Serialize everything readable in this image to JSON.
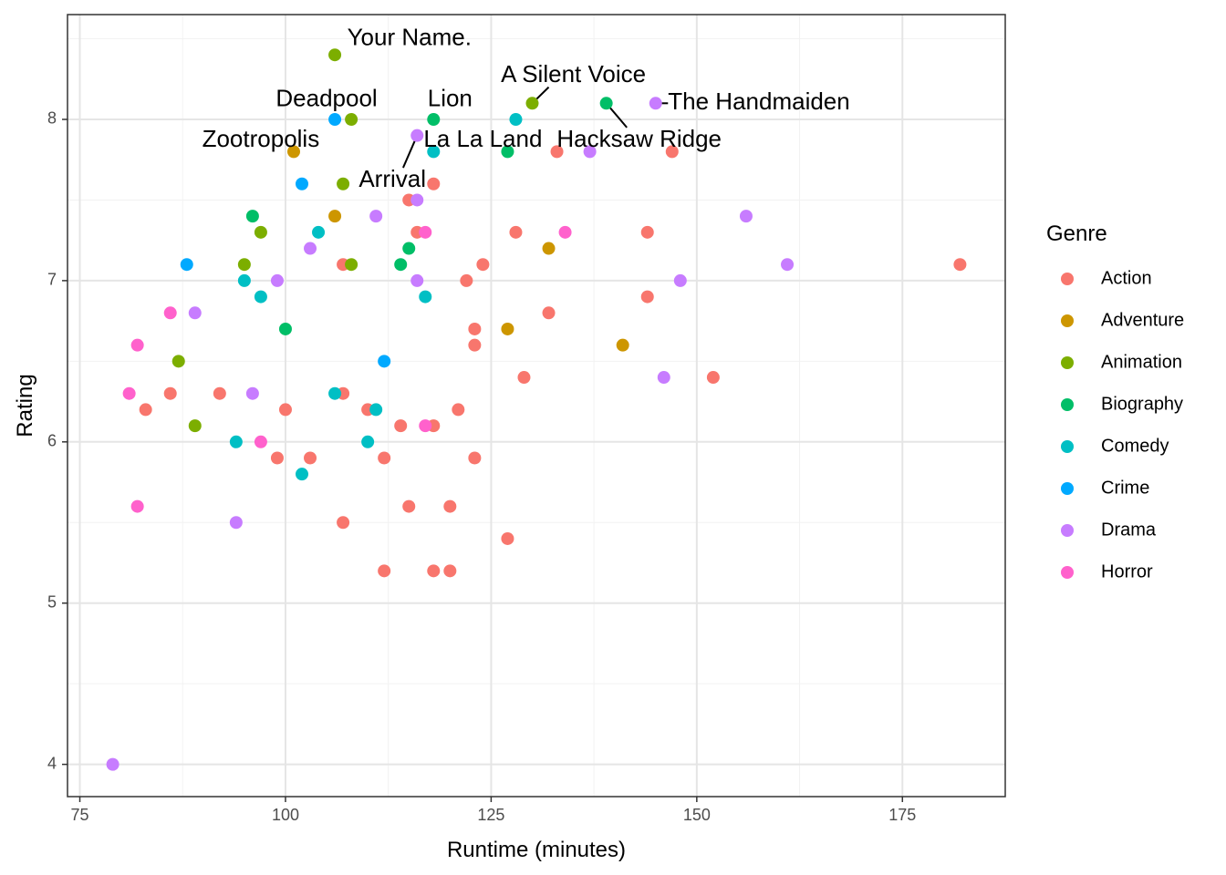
{
  "chart_data": {
    "type": "scatter",
    "title": "",
    "xlabel": "Runtime (minutes)",
    "ylabel": "Rating",
    "xlim": [
      73.5,
      187.5
    ],
    "ylim": [
      3.8,
      8.65
    ],
    "x_ticks": [
      75,
      100,
      125,
      150,
      175
    ],
    "y_ticks": [
      4,
      5,
      6,
      7,
      8
    ],
    "grid": true,
    "legend": {
      "title": "Genre",
      "placement": "right"
    },
    "series": [
      {
        "name": "Action",
        "color": "#F8766D",
        "points": [
          [
            83,
            6.2
          ],
          [
            86,
            6.3
          ],
          [
            92,
            6.3
          ],
          [
            99,
            5.9
          ],
          [
            100,
            6.2
          ],
          [
            103,
            5.9
          ],
          [
            107,
            7.1
          ],
          [
            107,
            6.3
          ],
          [
            107,
            5.5
          ],
          [
            110,
            6.2
          ],
          [
            112,
            5.9
          ],
          [
            112,
            5.2
          ],
          [
            114,
            6.1
          ],
          [
            115,
            7.5
          ],
          [
            115,
            5.6
          ],
          [
            116,
            7.3
          ],
          [
            118,
            7.6
          ],
          [
            118,
            6.1
          ],
          [
            118,
            5.2
          ],
          [
            120,
            5.6
          ],
          [
            120,
            5.2
          ],
          [
            121,
            6.2
          ],
          [
            122,
            7.0
          ],
          [
            123,
            6.7
          ],
          [
            123,
            6.6
          ],
          [
            123,
            5.9
          ],
          [
            124,
            7.1
          ],
          [
            127,
            5.4
          ],
          [
            128,
            7.3
          ],
          [
            129,
            6.4
          ],
          [
            132,
            6.8
          ],
          [
            133,
            7.8
          ],
          [
            144,
            7.3
          ],
          [
            144,
            6.9
          ],
          [
            147,
            7.8
          ],
          [
            152,
            6.4
          ],
          [
            182,
            7.1
          ]
        ]
      },
      {
        "name": "Adventure",
        "color": "#CD9600",
        "points": [
          [
            101,
            7.8
          ],
          [
            106,
            7.4
          ],
          [
            127,
            6.7
          ],
          [
            132,
            7.2
          ],
          [
            141,
            6.6
          ]
        ]
      },
      {
        "name": "Animation",
        "color": "#7CAE00",
        "points": [
          [
            87,
            6.5
          ],
          [
            89,
            6.1
          ],
          [
            95,
            7.1
          ],
          [
            97,
            7.3
          ],
          [
            106,
            8.4
          ],
          [
            107,
            7.6
          ],
          [
            108,
            8.0
          ],
          [
            108,
            7.1
          ],
          [
            130,
            8.1
          ]
        ]
      },
      {
        "name": "Biography",
        "color": "#00BE67",
        "points": [
          [
            96,
            7.4
          ],
          [
            100,
            6.7
          ],
          [
            114,
            7.1
          ],
          [
            115,
            7.2
          ],
          [
            118,
            8.0
          ],
          [
            127,
            7.8
          ],
          [
            139,
            8.1
          ]
        ]
      },
      {
        "name": "Comedy",
        "color": "#00BFC4",
        "points": [
          [
            94,
            6.0
          ],
          [
            95,
            7.0
          ],
          [
            97,
            6.9
          ],
          [
            102,
            5.8
          ],
          [
            104,
            7.3
          ],
          [
            106,
            6.3
          ],
          [
            110,
            6.0
          ],
          [
            111,
            6.2
          ],
          [
            117,
            6.9
          ],
          [
            118,
            7.8
          ],
          [
            128,
            8.0
          ]
        ]
      },
      {
        "name": "Crime",
        "color": "#00A9FF",
        "points": [
          [
            88,
            7.1
          ],
          [
            102,
            7.6
          ],
          [
            106,
            8.0
          ],
          [
            112,
            6.5
          ]
        ]
      },
      {
        "name": "Drama",
        "color": "#C77CFF",
        "points": [
          [
            79,
            4.0
          ],
          [
            89,
            6.8
          ],
          [
            94,
            5.5
          ],
          [
            96,
            6.3
          ],
          [
            99,
            7.0
          ],
          [
            103,
            7.2
          ],
          [
            111,
            7.4
          ],
          [
            116,
            7.9
          ],
          [
            116,
            7.5
          ],
          [
            116,
            7.0
          ],
          [
            137,
            7.8
          ],
          [
            145,
            8.1
          ],
          [
            146,
            6.4
          ],
          [
            148,
            7.0
          ],
          [
            156,
            7.4
          ],
          [
            161,
            7.1
          ]
        ]
      },
      {
        "name": "Horror",
        "color": "#FF61CC",
        "points": [
          [
            81,
            6.3
          ],
          [
            82,
            6.6
          ],
          [
            82,
            5.6
          ],
          [
            86,
            6.8
          ],
          [
            97,
            6.0
          ],
          [
            117,
            7.3
          ],
          [
            117,
            6.1
          ],
          [
            134,
            7.3
          ]
        ]
      }
    ],
    "annotations": [
      {
        "text": "Your Name.",
        "x": 106,
        "y": 8.4,
        "label_x": 107.5,
        "label_y": 8.5,
        "anchor": "start",
        "leader": false
      },
      {
        "text": "A Silent Voice",
        "x": 130,
        "y": 8.1,
        "label_x": 135,
        "label_y": 8.27,
        "anchor": "middle",
        "leader": true,
        "leader_end": [
          132,
          8.2
        ]
      },
      {
        "text": "Deadpool",
        "x": 106,
        "y": 8.0,
        "label_x": 105,
        "label_y": 8.12,
        "anchor": "middle",
        "leader": false
      },
      {
        "text": "Lion",
        "x": 118,
        "y": 8.0,
        "label_x": 120,
        "label_y": 8.12,
        "anchor": "middle",
        "leader": false
      },
      {
        "text": "The Handmaiden",
        "x": 145,
        "y": 8.1,
        "label_x": 146.5,
        "label_y": 8.1,
        "anchor": "start",
        "leader": true,
        "leader_end": [
          146.5,
          8.1
        ]
      },
      {
        "text": "Zootropolis",
        "x": 101,
        "y": 7.8,
        "label_x": 97,
        "label_y": 7.87,
        "anchor": "middle",
        "leader": false
      },
      {
        "text": "La La Land",
        "x": 116,
        "y": 7.9,
        "label_x": 124,
        "label_y": 7.87,
        "anchor": "middle",
        "leader": false
      },
      {
        "text": "Hacksaw Ridge",
        "x": 139,
        "y": 8.1,
        "label_x": 143,
        "label_y": 7.87,
        "anchor": "middle",
        "leader": true,
        "leader_end": [
          141.5,
          7.95
        ]
      },
      {
        "text": "Arrival",
        "x": 116,
        "y": 7.9,
        "label_x": 113,
        "label_y": 7.62,
        "anchor": "middle",
        "leader": true,
        "leader_end": [
          114.3,
          7.7
        ]
      }
    ]
  }
}
